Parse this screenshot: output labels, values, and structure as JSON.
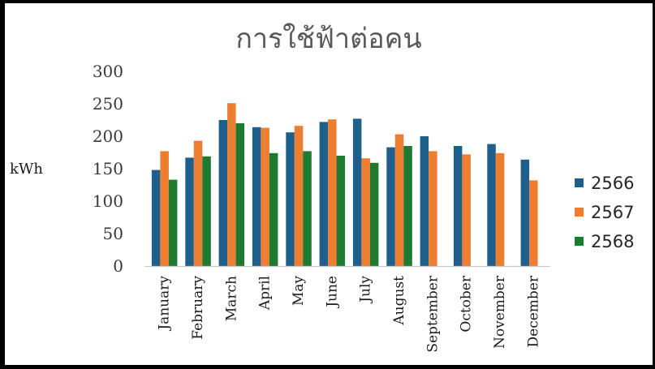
{
  "chart_data": {
    "type": "bar",
    "title": "การใช้ฟ้าต่อคน",
    "xlabel": "",
    "ylabel": "kWh",
    "ylim": [
      0,
      300
    ],
    "yticks": [
      0,
      50,
      100,
      150,
      200,
      250,
      300
    ],
    "grid": false,
    "legend": "right",
    "categories": [
      "January",
      "February",
      "March",
      "April",
      "May",
      "June",
      "July",
      "August",
      "September",
      "October",
      "November",
      "December"
    ],
    "series": [
      {
        "name": "2566",
        "color": "#1f5f8b",
        "values": [
          148,
          167,
          225,
          214,
          206,
          222,
          227,
          183,
          200,
          185,
          188,
          164
        ]
      },
      {
        "name": "2567",
        "color": "#ed7d31",
        "values": [
          177,
          193,
          251,
          213,
          216,
          226,
          166,
          203,
          177,
          172,
          174,
          132
        ]
      },
      {
        "name": "2568",
        "color": "#1e7a2e",
        "values": [
          133,
          169,
          220,
          174,
          177,
          170,
          159,
          185,
          null,
          null,
          null,
          null
        ]
      }
    ]
  }
}
